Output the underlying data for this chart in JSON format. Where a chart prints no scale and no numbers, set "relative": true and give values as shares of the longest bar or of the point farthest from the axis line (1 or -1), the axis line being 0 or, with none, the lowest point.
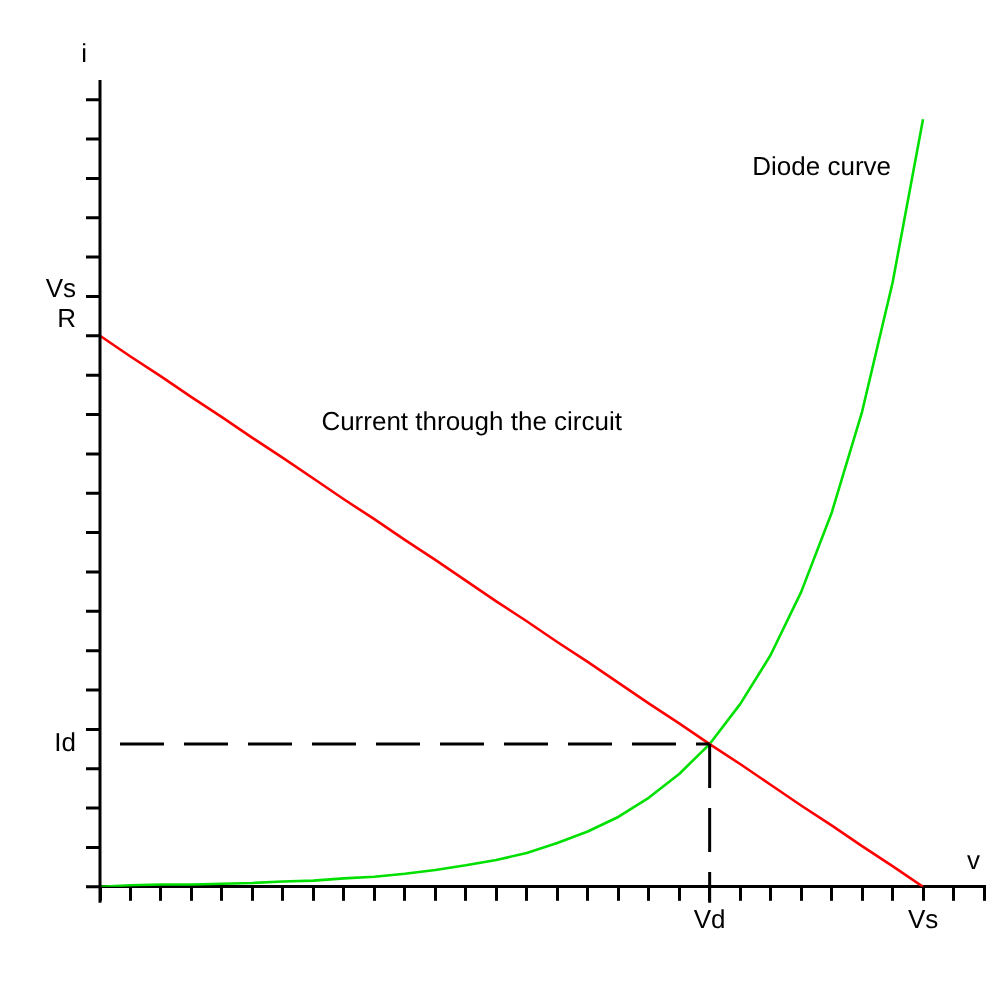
{
  "chart_data": {
    "type": "line",
    "relative": true,
    "xlabel": "v",
    "ylabel": "i",
    "categories": [
      null,
      null,
      null,
      null,
      null,
      null,
      null,
      null,
      null,
      null,
      null,
      null,
      null,
      null,
      null,
      null,
      null,
      null,
      null,
      null,
      "Vd",
      null,
      null,
      null,
      null,
      null,
      null,
      "Vs",
      null,
      null
    ],
    "series": [
      {
        "name": "Current through the circuit",
        "color": "#ff0000",
        "values": [
          0.718,
          0.691,
          0.665,
          0.638,
          0.612,
          0.585,
          0.559,
          0.532,
          0.505,
          0.479,
          0.452,
          0.426,
          0.399,
          0.372,
          0.346,
          0.319,
          0.293,
          0.266,
          0.239,
          0.213,
          0.186,
          0.16,
          0.133,
          0.106,
          0.08,
          0.053,
          0.027,
          0,
          null,
          null
        ]
      },
      {
        "name": "Diode curve",
        "color": "#00e000",
        "values": [
          0,
          0.002,
          0.003,
          0.003,
          0.004,
          0.005,
          0.007,
          0.008,
          0.011,
          0.013,
          0.017,
          0.022,
          0.028,
          0.035,
          0.044,
          0.057,
          0.072,
          0.091,
          0.116,
          0.147,
          0.186,
          0.238,
          0.302,
          0.384,
          0.487,
          0.619,
          0.787,
          1,
          null,
          null
        ]
      }
    ],
    "ref_lines": [
      {
        "axis": "x",
        "value": "Vd",
        "color": "#000000",
        "line_style": "dashed"
      },
      {
        "axis": "y",
        "value": 0.186,
        "label": "Id",
        "color": "#000000",
        "line_style": "dashed"
      }
    ],
    "annotations": [
      "Vs\nR"
    ],
    "legend": false,
    "marker": "none",
    "line_style": "solid"
  }
}
